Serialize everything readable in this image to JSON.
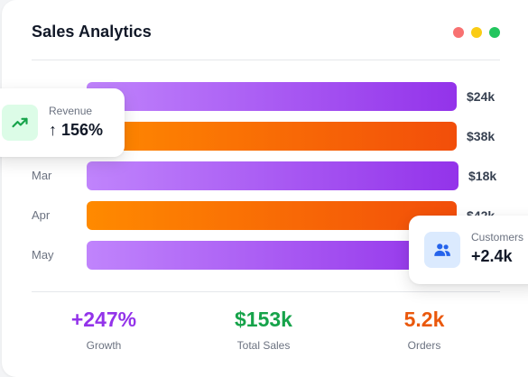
{
  "header": {
    "title": "Sales Analytics",
    "window_dots": [
      {
        "name": "red",
        "color": "#f87171"
      },
      {
        "name": "yellow",
        "color": "#facc15"
      },
      {
        "name": "green",
        "color": "#22c55e"
      }
    ]
  },
  "chart": {
    "rows": [
      {
        "label": "",
        "value": "$24k",
        "color": "purple"
      },
      {
        "label": "",
        "value": "$38k",
        "color": "orange"
      },
      {
        "label": "Mar",
        "value": "$18k",
        "color": "purple"
      },
      {
        "label": "Apr",
        "value": "$42k",
        "color": "orange"
      },
      {
        "label": "May",
        "value": "",
        "color": "purple"
      }
    ]
  },
  "stats": [
    {
      "value": "+247%",
      "label": "Growth",
      "color": "#9333ea"
    },
    {
      "value": "$153k",
      "label": "Total Sales",
      "color": "#16a34a"
    },
    {
      "value": "5.2k",
      "label": "Orders",
      "color": "#ea580c"
    }
  ],
  "revenue_card": {
    "label": "Revenue",
    "value": "↑ 156%",
    "icon": "trending-up-icon",
    "icon_color": "#16a34a",
    "icon_bg": "#dcfce7"
  },
  "customers_card": {
    "label": "Customers",
    "value": "+2.4k",
    "icon": "users-icon",
    "icon_color": "#2563eb",
    "icon_bg": "#dbeafe"
  }
}
